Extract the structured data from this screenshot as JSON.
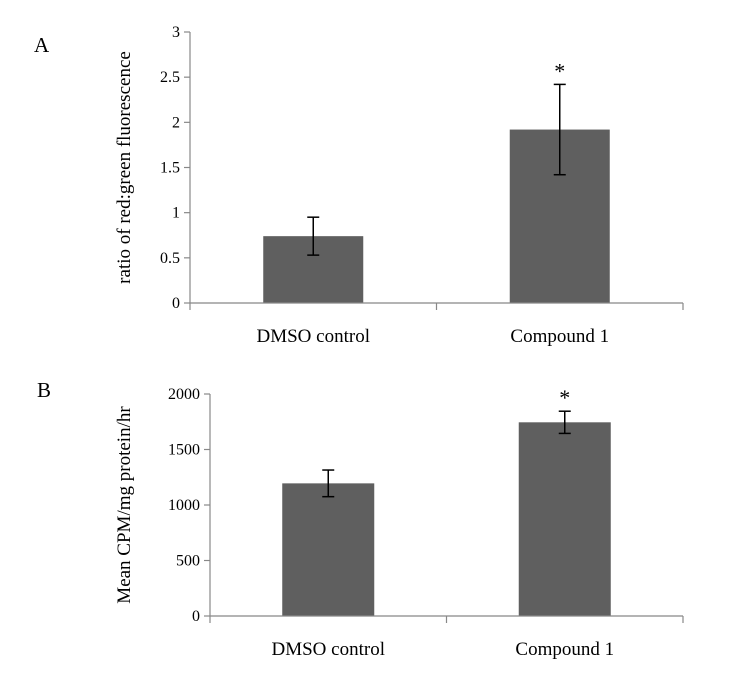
{
  "figure": {
    "background": "#ffffff",
    "bar_color": "#5f5f5f",
    "axis_color": "#888888",
    "error_bar_color": "#000000"
  },
  "chart_data": [
    {
      "panel_label": "A",
      "type": "bar",
      "ylabel": "ratio of red:green fluorescence",
      "xlabel": "",
      "categories": [
        "DMSO control",
        "Compound 1"
      ],
      "values": [
        0.74,
        1.92
      ],
      "error": [
        0.21,
        0.5
      ],
      "significance": [
        "",
        "*"
      ],
      "ylim": [
        0,
        3
      ],
      "yticks": [
        0,
        0.5,
        1,
        1.5,
        2,
        2.5,
        3
      ],
      "ytick_labels": [
        "0",
        "0.5",
        "1",
        "1.5",
        "2",
        "2.5",
        "3"
      ],
      "grid": false,
      "legend": "none"
    },
    {
      "panel_label": "B",
      "type": "bar",
      "ylabel": "Mean CPM/mg protein/hr",
      "xlabel": "",
      "categories": [
        "DMSO control",
        "Compound 1"
      ],
      "values": [
        1195,
        1745
      ],
      "error": [
        120,
        100
      ],
      "significance": [
        "",
        "*"
      ],
      "ylim": [
        0,
        2000
      ],
      "yticks": [
        0,
        500,
        1000,
        1500,
        2000
      ],
      "ytick_labels": [
        "0",
        "500",
        "1000",
        "1500",
        "2000"
      ],
      "grid": false,
      "legend": "none"
    }
  ]
}
